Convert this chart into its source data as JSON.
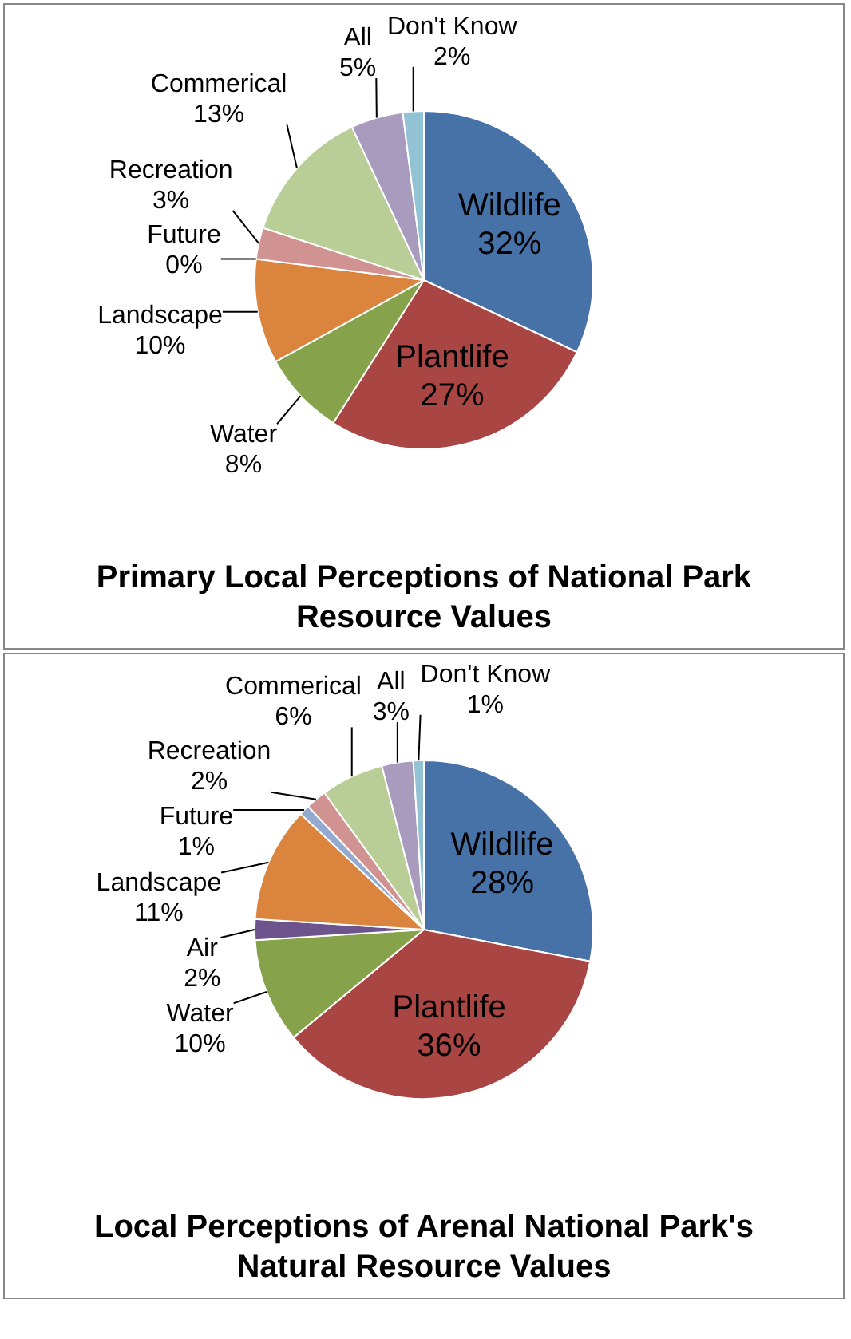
{
  "chart_data": [
    {
      "type": "pie",
      "title": "Primary Local Perceptions of National Park Resource Values",
      "legend": false,
      "categories": [
        "Wildlife",
        "Plantlife",
        "Water",
        "Landscape",
        "Future",
        "Recreation",
        "Commerical",
        "All",
        "Don't Know"
      ],
      "values": [
        32,
        27,
        8,
        10,
        0,
        3,
        13,
        5,
        2
      ],
      "value_labels": [
        "32%",
        "27%",
        "8%",
        "10%",
        "0%",
        "3%",
        "13%",
        "5%",
        "2%"
      ],
      "colors": [
        "#4672a8",
        "#a94543",
        "#86a24a",
        "#db843d",
        "#93a9cf",
        "#d19392",
        "#b9cd96",
        "#a99bbd",
        "#92c3d5"
      ]
    },
    {
      "type": "pie",
      "title": "Local Perceptions of Arenal National Park's Natural Resource Values",
      "legend": false,
      "categories": [
        "Wildlife",
        "Plantlife",
        "Water",
        "Air",
        "Landscape",
        "Future",
        "Recreation",
        "Commerical",
        "All",
        "Don't Know"
      ],
      "values": [
        28,
        36,
        10,
        2,
        11,
        1,
        2,
        6,
        3,
        1
      ],
      "value_labels": [
        "28%",
        "36%",
        "10%",
        "2%",
        "11%",
        "1%",
        "2%",
        "6%",
        "3%",
        "1%"
      ],
      "colors": [
        "#4672a8",
        "#a94543",
        "#86a24a",
        "#6e548d",
        "#db843d",
        "#93a9cf",
        "#d19392",
        "#b9cd96",
        "#a99bbd",
        "#92c3d5"
      ]
    }
  ]
}
